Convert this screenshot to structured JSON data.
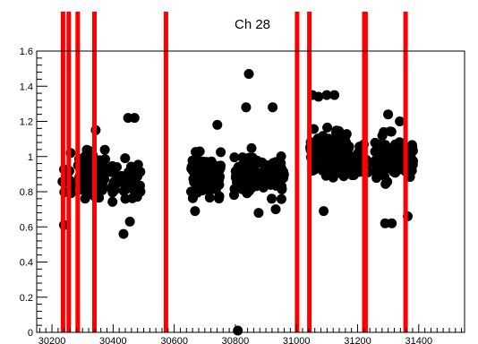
{
  "chart_data": {
    "type": "scatter",
    "title": "Ch 28",
    "xlabel": "",
    "ylabel": "",
    "xlim": [
      30150,
      31550
    ],
    "ylim": [
      0,
      1.6
    ],
    "x_ticks": [
      30200,
      30400,
      30600,
      30800,
      31000,
      31200,
      31400
    ],
    "y_ticks": [
      0,
      0.2,
      0.4,
      0.6,
      0.8,
      1,
      1.2,
      1.4,
      1.6
    ],
    "grid": false,
    "legend": "none",
    "marker_color": "#000000",
    "vline_color": "#ff0000",
    "vlines": [
      30236,
      30255,
      30284,
      30339,
      30573,
      31002,
      31042,
      31222,
      31226,
      31357
    ],
    "clusters": [
      {
        "x_range": [
          30230,
          30270
        ],
        "y_center": 0.87,
        "y_spread": 0.1,
        "count": 14
      },
      {
        "x_range": [
          30285,
          30375
        ],
        "y_center": 0.9,
        "y_spread": 0.13,
        "count": 90
      },
      {
        "x_range": [
          30395,
          30490
        ],
        "y_center": 0.86,
        "y_spread": 0.12,
        "count": 55
      },
      {
        "x_range": [
          30655,
          30755
        ],
        "y_center": 0.9,
        "y_spread": 0.13,
        "count": 85
      },
      {
        "x_range": [
          30795,
          30960
        ],
        "y_center": 0.9,
        "y_spread": 0.12,
        "count": 120
      },
      {
        "x_range": [
          31045,
          31165
        ],
        "y_center": 1.02,
        "y_spread": 0.14,
        "count": 110
      },
      {
        "x_range": [
          31165,
          31235
        ],
        "y_center": 0.96,
        "y_spread": 0.1,
        "count": 30
      },
      {
        "x_range": [
          31255,
          31385
        ],
        "y_center": 0.98,
        "y_spread": 0.14,
        "count": 100
      }
    ],
    "points": [
      {
        "x": 30239,
        "y": 0.61
      },
      {
        "x": 30261,
        "y": 1.02
      },
      {
        "x": 30343,
        "y": 1.15
      },
      {
        "x": 30449,
        "y": 1.22
      },
      {
        "x": 30470,
        "y": 1.22
      },
      {
        "x": 30434,
        "y": 0.56
      },
      {
        "x": 30455,
        "y": 0.63
      },
      {
        "x": 30741,
        "y": 1.18
      },
      {
        "x": 30668,
        "y": 0.69
      },
      {
        "x": 30844,
        "y": 1.47
      },
      {
        "x": 30835,
        "y": 1.28
      },
      {
        "x": 30922,
        "y": 1.28
      },
      {
        "x": 30876,
        "y": 0.68
      },
      {
        "x": 30932,
        "y": 0.7
      },
      {
        "x": 30808,
        "y": 0.01
      },
      {
        "x": 31052,
        "y": 1.35
      },
      {
        "x": 31072,
        "y": 1.34
      },
      {
        "x": 31099,
        "y": 1.35
      },
      {
        "x": 31124,
        "y": 1.35
      },
      {
        "x": 31089,
        "y": 0.69
      },
      {
        "x": 31300,
        "y": 1.24
      },
      {
        "x": 31338,
        "y": 1.2
      },
      {
        "x": 31290,
        "y": 0.62
      },
      {
        "x": 31312,
        "y": 0.62
      },
      {
        "x": 31364,
        "y": 0.66
      }
    ]
  }
}
